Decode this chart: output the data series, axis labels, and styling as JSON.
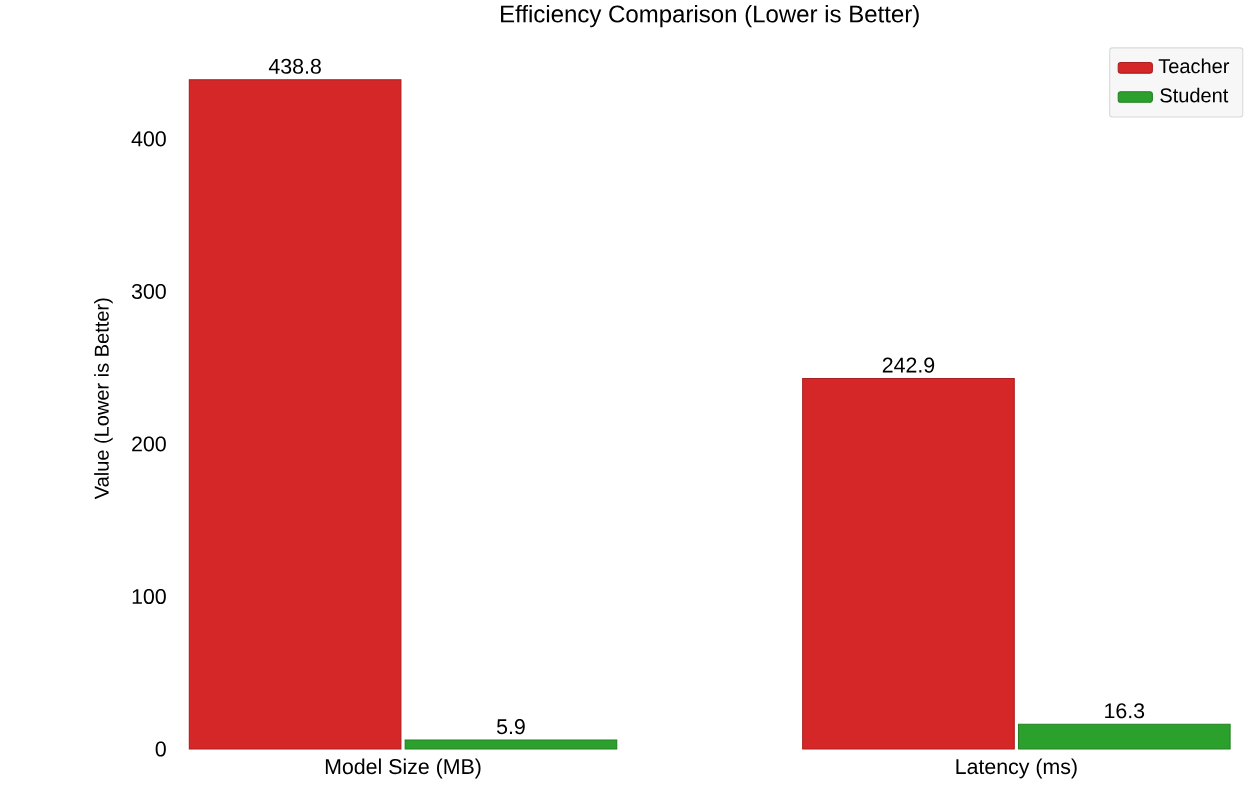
{
  "chart_data": {
    "type": "bar",
    "title": "Efficiency Comparison (Lower is Better)",
    "ylabel": "Value (Lower is Better)",
    "categories": [
      "Model Size (MB)",
      "Latency (ms)"
    ],
    "series": [
      {
        "name": "Teacher",
        "color": "#d62728",
        "values": [
          438.8,
          242.9
        ]
      },
      {
        "name": "Student",
        "color": "#2ca02c",
        "values": [
          5.9,
          16.3
        ]
      }
    ],
    "ylim": [
      0,
      460
    ],
    "yticks": [
      0,
      100,
      200,
      300,
      400
    ],
    "grid": false,
    "legend": "top right",
    "data_labels": true
  }
}
